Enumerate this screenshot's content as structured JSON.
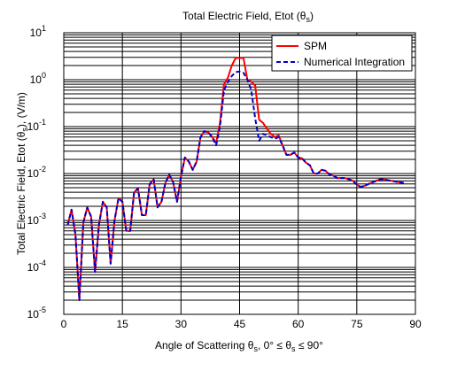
{
  "chart_data": {
    "type": "line",
    "title": "Total Electric Field, Etot (θs)",
    "title_parts": {
      "main": "Total Electric Field, Etot (θ",
      "sub": "s",
      "close": ")"
    },
    "xlabel": "Angle of Scattering θs, 0° ≤ θs ≤ 90°",
    "xlabel_parts": {
      "a": "Angle of Scattering θ",
      "b": "s",
      "c": ", 0° ≤ θ",
      "d": "s",
      "e": " ≤ 90°"
    },
    "ylabel": "Total Electric Field, Etot (θs), (V/m)",
    "ylabel_parts": {
      "a": "Total Electric Field, Etot (θ",
      "b": "s",
      "c": "), (V/m)"
    },
    "xlim": [
      0,
      90
    ],
    "ylim": [
      1e-05,
      10
    ],
    "yscale": "log",
    "grid": true,
    "legend_position": "top-right",
    "x_ticks": [
      0,
      15,
      30,
      45,
      60,
      75,
      90
    ],
    "x_tick_labels": [
      "0",
      "15",
      "30",
      "45",
      "60",
      "75",
      "90"
    ],
    "y_ticks": [
      {
        "value": 1e-05,
        "base": "10",
        "exp": "-5"
      },
      {
        "value": 0.0001,
        "base": "10",
        "exp": "-4"
      },
      {
        "value": 0.001,
        "base": "10",
        "exp": "-3"
      },
      {
        "value": 0.01,
        "base": "10",
        "exp": "-2"
      },
      {
        "value": 0.1,
        "base": "10",
        "exp": "-1"
      },
      {
        "value": 1,
        "base": "10",
        "exp": "0"
      },
      {
        "value": 10,
        "base": "10",
        "exp": "1"
      }
    ],
    "series": [
      {
        "name": "SPM",
        "color": "#ff0000",
        "dash": "solid",
        "x": [
          1,
          2,
          3,
          4,
          5,
          6,
          7,
          8,
          9,
          10,
          11,
          12,
          13,
          14,
          15,
          16,
          17,
          18,
          19,
          20,
          21,
          22,
          23,
          24,
          25,
          26,
          27,
          28,
          29,
          30,
          31,
          32,
          33,
          34,
          35,
          36,
          37,
          38,
          39,
          40,
          41,
          42,
          43,
          44,
          45,
          46,
          47,
          48,
          49,
          50,
          51,
          52,
          53,
          54,
          55,
          56,
          57,
          58,
          59,
          60,
          61,
          62,
          63,
          64,
          65,
          66,
          67,
          68,
          69,
          70,
          71,
          72,
          73,
          74,
          75,
          76,
          77,
          78,
          79,
          80,
          81,
          82,
          83,
          84,
          85,
          86,
          87
        ],
        "y": [
          0.0008,
          0.0017,
          0.0005,
          2e-05,
          0.0009,
          0.0019,
          0.0012,
          8e-05,
          0.0008,
          0.0025,
          0.0019,
          0.00012,
          0.001,
          0.003,
          0.0025,
          0.0006,
          0.0006,
          0.004,
          0.0048,
          0.0013,
          0.0013,
          0.006,
          0.0075,
          0.0019,
          0.0025,
          0.0063,
          0.0095,
          0.0065,
          0.0025,
          0.0085,
          0.022,
          0.018,
          0.012,
          0.018,
          0.06,
          0.08,
          0.075,
          0.06,
          0.045,
          0.12,
          0.8,
          1.1,
          2.0,
          2.9,
          2.9,
          2.9,
          1.0,
          0.9,
          0.75,
          0.14,
          0.12,
          0.09,
          0.07,
          0.06,
          0.065,
          0.04,
          0.025,
          0.025,
          0.028,
          0.022,
          0.021,
          0.017,
          0.015,
          0.01,
          0.01,
          0.012,
          0.0115,
          0.0095,
          0.009,
          0.008,
          0.008,
          0.008,
          0.0075,
          0.007,
          0.0058,
          0.0052,
          0.0055,
          0.006,
          0.0065,
          0.007,
          0.0075,
          0.0075,
          0.0072,
          0.007,
          0.0067,
          0.0065,
          0.0063
        ]
      },
      {
        "name": "Numerical Integration",
        "color": "#0000cc",
        "dash": "dashed",
        "x": [
          1,
          2,
          3,
          4,
          5,
          6,
          7,
          8,
          9,
          10,
          11,
          12,
          13,
          14,
          15,
          16,
          17,
          18,
          19,
          20,
          21,
          22,
          23,
          24,
          25,
          26,
          27,
          28,
          29,
          30,
          31,
          32,
          33,
          34,
          35,
          36,
          37,
          38,
          39,
          40,
          41,
          42,
          43,
          44,
          45,
          46,
          47,
          48,
          49,
          50,
          51,
          52,
          53,
          54,
          55,
          56,
          57,
          58,
          59,
          60,
          61,
          62,
          63,
          64,
          65,
          66,
          67,
          68,
          69,
          70,
          71,
          72,
          73,
          74,
          75,
          76,
          77,
          78,
          79,
          80,
          81,
          82,
          83,
          84,
          85,
          86,
          87
        ],
        "y": [
          0.0008,
          0.0017,
          0.0005,
          2e-05,
          0.0009,
          0.0019,
          0.0012,
          8e-05,
          0.0008,
          0.0025,
          0.0019,
          0.00012,
          0.001,
          0.003,
          0.0025,
          0.0006,
          0.0006,
          0.004,
          0.0048,
          0.0013,
          0.0013,
          0.006,
          0.0075,
          0.0019,
          0.0025,
          0.0063,
          0.0095,
          0.0065,
          0.0025,
          0.0085,
          0.022,
          0.018,
          0.012,
          0.018,
          0.06,
          0.08,
          0.075,
          0.06,
          0.04,
          0.1,
          0.6,
          0.9,
          1.2,
          1.45,
          1.5,
          1.4,
          1.0,
          0.6,
          0.15,
          0.05,
          0.07,
          0.065,
          0.06,
          0.055,
          0.06,
          0.04,
          0.025,
          0.025,
          0.028,
          0.022,
          0.021,
          0.017,
          0.015,
          0.01,
          0.01,
          0.012,
          0.0115,
          0.0095,
          0.009,
          0.008,
          0.008,
          0.008,
          0.0075,
          0.007,
          0.0058,
          0.0052,
          0.0055,
          0.006,
          0.0065,
          0.007,
          0.0075,
          0.0075,
          0.0072,
          0.007,
          0.0067,
          0.0065,
          0.0063
        ]
      }
    ]
  }
}
